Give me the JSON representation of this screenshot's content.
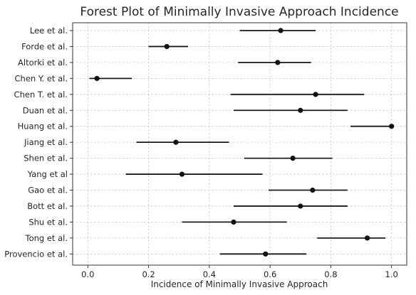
{
  "chart_data": {
    "type": "scatter",
    "subtype": "forest-plot",
    "title": "Forest Plot of Minimally Invasive Approach Incidence",
    "xlabel": "Incidence of Minimally Invasive Approach",
    "ylabel": "",
    "xlim": [
      -0.05,
      1.05
    ],
    "x_ticks": [
      "0.0",
      "0.2",
      "0.4",
      "0.6",
      "0.8",
      "1.0"
    ],
    "grid": true,
    "studies": [
      {
        "label": "Lee et al.",
        "estimate": 0.635,
        "lower": 0.5,
        "upper": 0.75
      },
      {
        "label": "Forde et al.",
        "estimate": 0.26,
        "lower": 0.2,
        "upper": 0.33
      },
      {
        "label": "Altorki et al.",
        "estimate": 0.625,
        "lower": 0.495,
        "upper": 0.735
      },
      {
        "label": "Chen Y. et al.",
        "estimate": 0.03,
        "lower": 0.005,
        "upper": 0.145
      },
      {
        "label": "Chen T. et al.",
        "estimate": 0.75,
        "lower": 0.47,
        "upper": 0.91
      },
      {
        "label": "Duan et al.",
        "estimate": 0.7,
        "lower": 0.48,
        "upper": 0.855
      },
      {
        "label": "Huang et al.",
        "estimate": 1.0,
        "lower": 0.865,
        "upper": 1.0
      },
      {
        "label": "Jiang et al.",
        "estimate": 0.29,
        "lower": 0.16,
        "upper": 0.465
      },
      {
        "label": "Shen et al.",
        "estimate": 0.675,
        "lower": 0.515,
        "upper": 0.805
      },
      {
        "label": "Yang et al",
        "estimate": 0.31,
        "lower": 0.125,
        "upper": 0.575
      },
      {
        "label": "Gao et al.",
        "estimate": 0.74,
        "lower": 0.595,
        "upper": 0.855
      },
      {
        "label": "Bott et al.",
        "estimate": 0.7,
        "lower": 0.48,
        "upper": 0.855
      },
      {
        "label": "Shu et al.",
        "estimate": 0.48,
        "lower": 0.31,
        "upper": 0.655
      },
      {
        "label": "Tong et al.",
        "estimate": 0.92,
        "lower": 0.755,
        "upper": 0.98
      },
      {
        "label": "Provencio et al.",
        "estimate": 0.585,
        "lower": 0.435,
        "upper": 0.72
      }
    ]
  }
}
